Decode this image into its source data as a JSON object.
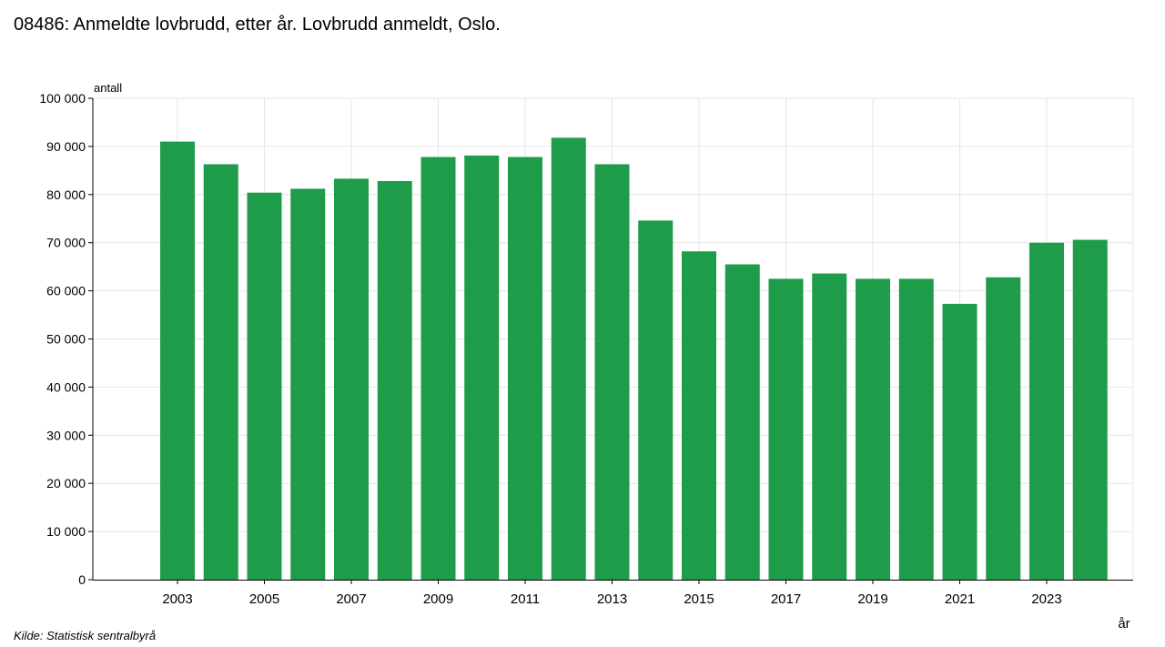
{
  "title": "08486: Anmeldte lovbrudd, etter år. Lovbrudd anmeldt, Oslo.",
  "source": "Kilde:  Statistisk sentralbyrå",
  "colors": {
    "bar": "#1e9c4a",
    "grid": "#e6e6e6",
    "axis": "#000000"
  },
  "chart_data": {
    "type": "bar",
    "title": "08486: Anmeldte lovbrudd, etter år. Lovbrudd anmeldt, Oslo.",
    "xlabel": "år",
    "ylabel": "antall",
    "ylim": [
      0,
      100000
    ],
    "yticks": [
      0,
      10000,
      20000,
      30000,
      40000,
      50000,
      60000,
      70000,
      80000,
      90000,
      100000
    ],
    "ytick_labels": [
      "0",
      "10 000",
      "20 000",
      "30 000",
      "40 000",
      "50 000",
      "60 000",
      "70 000",
      "80 000",
      "90 000",
      "100 000"
    ],
    "xtick_labels": [
      "2003",
      "2005",
      "2007",
      "2009",
      "2011",
      "2013",
      "2015",
      "2017",
      "2019",
      "2021",
      "2023"
    ],
    "grid": true,
    "categories": [
      "2003",
      "2004",
      "2005",
      "2006",
      "2007",
      "2008",
      "2009",
      "2010",
      "2011",
      "2012",
      "2013",
      "2014",
      "2015",
      "2016",
      "2017",
      "2018",
      "2019",
      "2020",
      "2021",
      "2022",
      "2023",
      "2024"
    ],
    "values": [
      91000,
      86300,
      80400,
      81200,
      83300,
      82800,
      87800,
      88100,
      87800,
      91800,
      86300,
      74600,
      68200,
      65500,
      62500,
      63600,
      62500,
      62500,
      57300,
      62800,
      70000,
      70600
    ]
  }
}
